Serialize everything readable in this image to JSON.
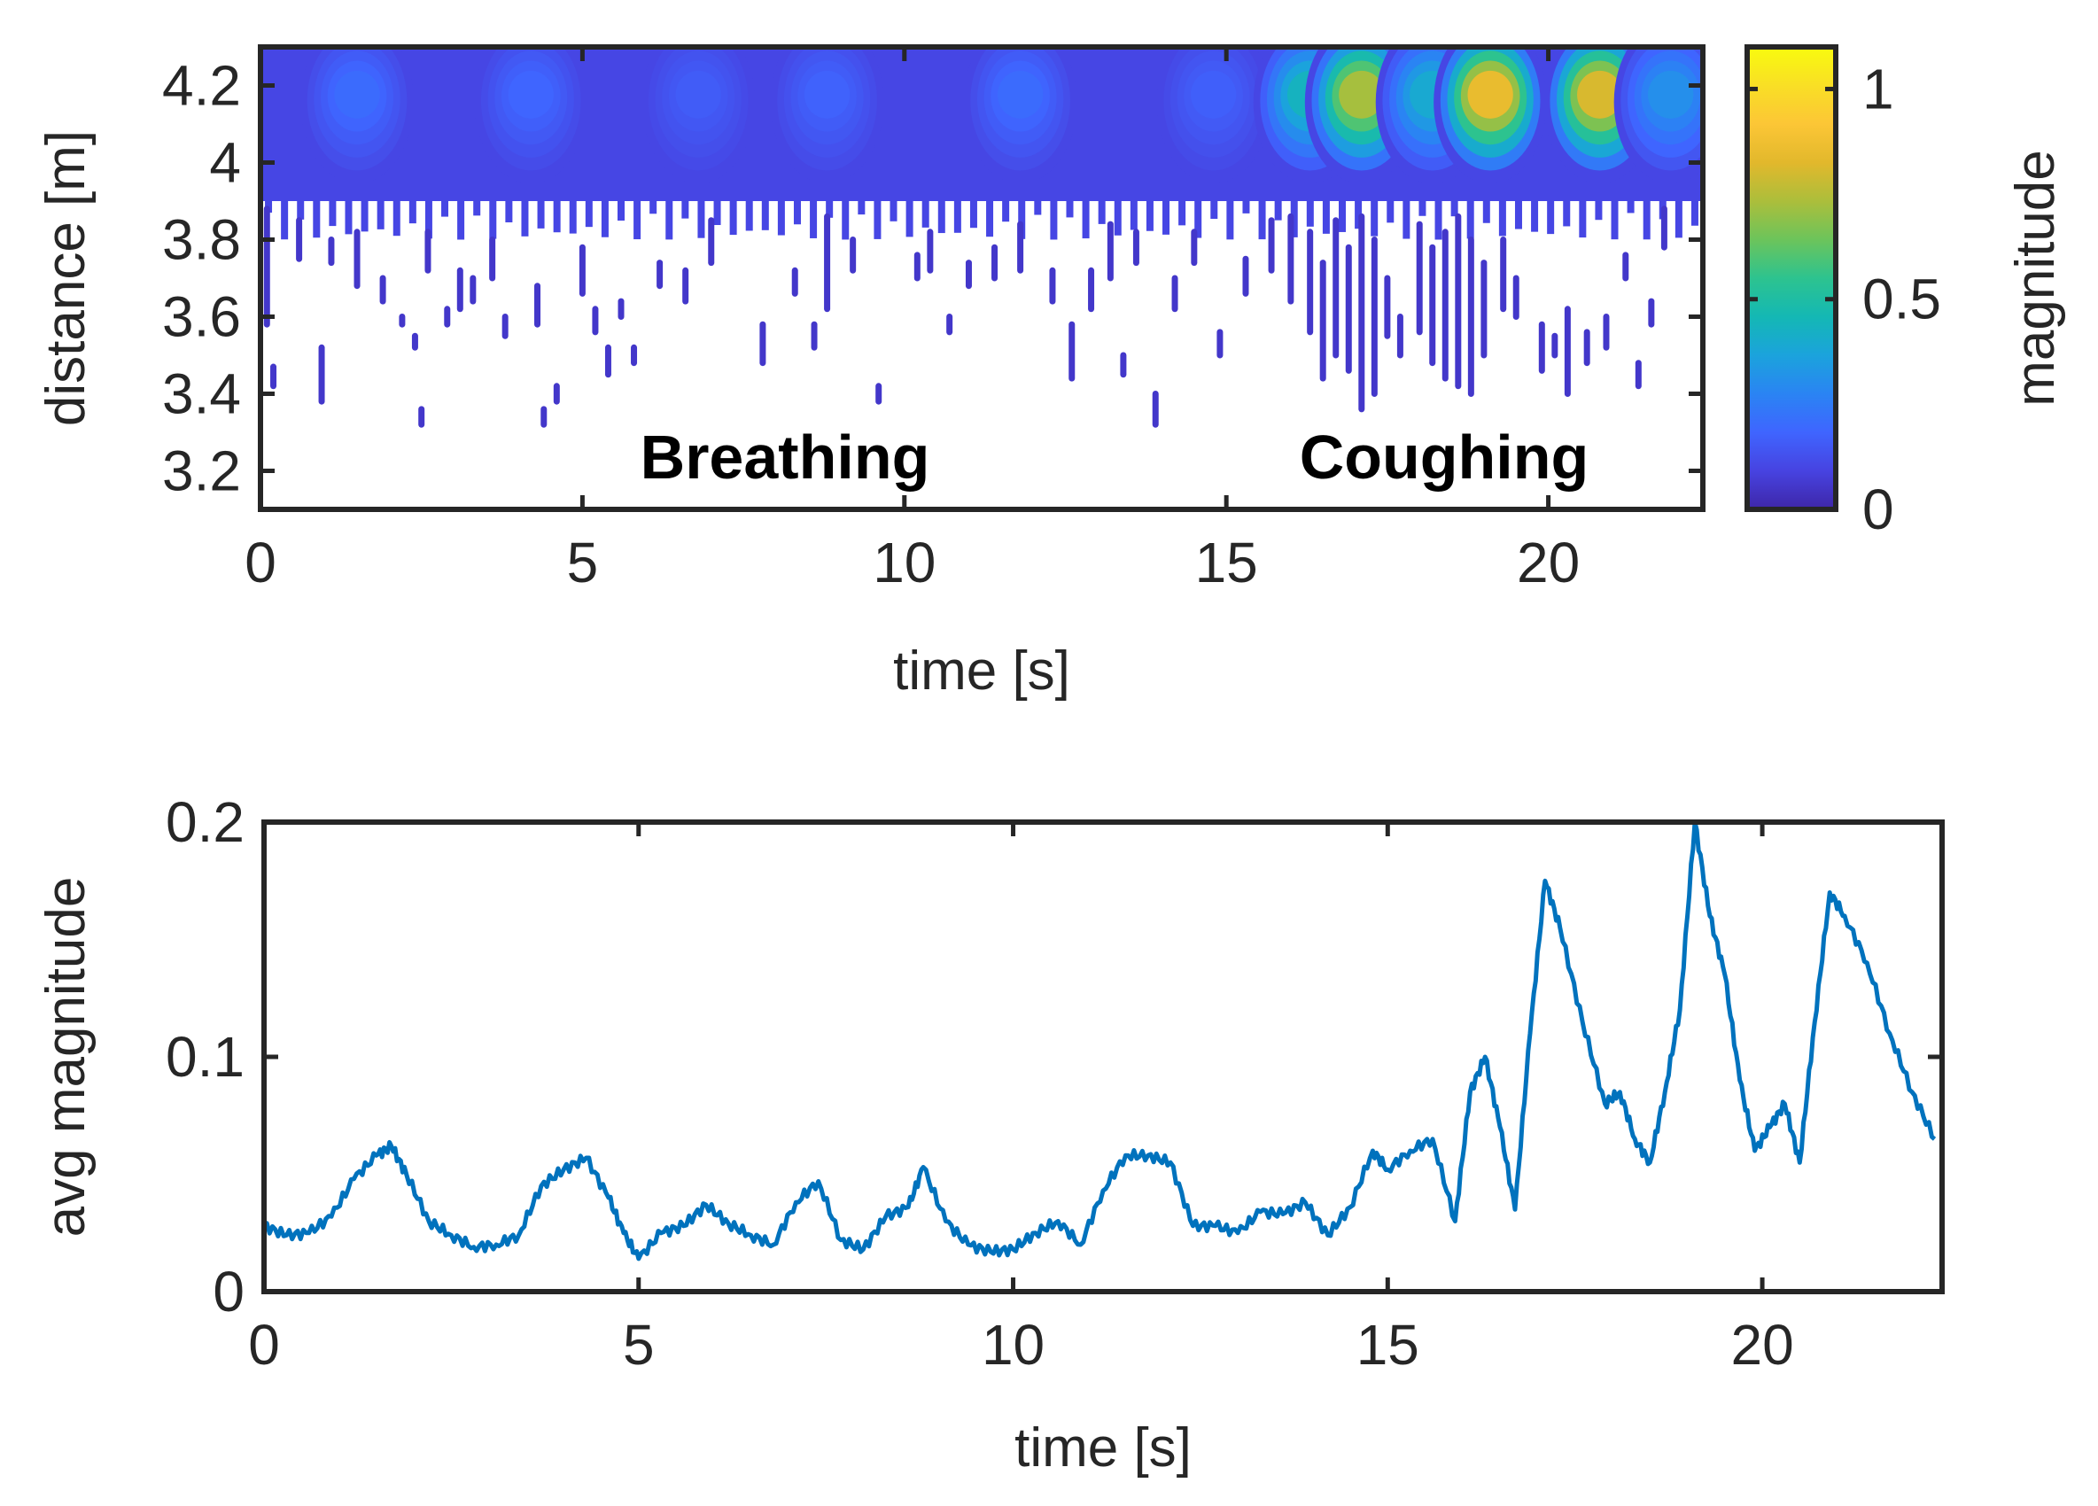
{
  "colors": {
    "line": "#0072BD",
    "axes": "#262626",
    "annotation": "#000000",
    "colormap": [
      "#3E26A8",
      "#4743E1",
      "#3F65FF",
      "#2A84F3",
      "#1BA3DC",
      "#14B8B4",
      "#2DC38F",
      "#6CC45B",
      "#ACBE3B",
      "#E2B82C",
      "#FCC636",
      "#F9DF25",
      "#F9FB0E"
    ]
  },
  "chart_data": [
    {
      "type": "heatmap",
      "id": "range-time-map",
      "xlabel": "time [s]",
      "ylabel": "distance [m]",
      "xlim": [
        0,
        22.4
      ],
      "ylim": [
        3.1,
        4.3
      ],
      "xticks": [
        0,
        5,
        10,
        15,
        20
      ],
      "xtick_labels": [
        "0",
        "5",
        "10",
        "15",
        "20"
      ],
      "yticks": [
        3.2,
        3.4,
        3.6,
        3.8,
        4.0,
        4.2
      ],
      "ytick_labels": [
        "3.2",
        "3.4",
        "3.6",
        "3.8",
        "4",
        "4.2"
      ],
      "annotations": [
        {
          "text": "Breathing",
          "x": 8.2,
          "y": 3.15
        },
        {
          "text": "Coughing",
          "x": 18.0,
          "y": 3.15
        }
      ],
      "colorbar": {
        "label": "magnitude",
        "range": [
          0,
          1.1
        ],
        "ticks": [
          0,
          0.5,
          1
        ],
        "tick_labels": [
          "0",
          "0.5",
          "1"
        ]
      },
      "near_band": {
        "y_low": 3.9,
        "y_high": 4.3,
        "base_magnitude": 0.1
      },
      "hotspots": [
        {
          "t": 1.5,
          "magnitude": 0.22
        },
        {
          "t": 4.2,
          "magnitude": 0.2
        },
        {
          "t": 6.8,
          "magnitude": 0.17
        },
        {
          "t": 8.8,
          "magnitude": 0.19
        },
        {
          "t": 11.8,
          "magnitude": 0.22
        },
        {
          "t": 14.8,
          "magnitude": 0.18
        },
        {
          "t": 16.3,
          "magnitude": 0.5
        },
        {
          "t": 17.1,
          "magnitude": 0.85
        },
        {
          "t": 18.2,
          "magnitude": 0.45
        },
        {
          "t": 19.1,
          "magnitude": 1.0
        },
        {
          "t": 20.8,
          "magnitude": 0.95
        },
        {
          "t": 21.9,
          "magnitude": 0.35
        }
      ],
      "streaks": [
        [
          0.1,
          3.88,
          3.58
        ],
        [
          0.2,
          3.47,
          3.42
        ],
        [
          0.6,
          3.85,
          3.75
        ],
        [
          0.95,
          3.52,
          3.38
        ],
        [
          1.1,
          3.8,
          3.74
        ],
        [
          1.5,
          3.82,
          3.68
        ],
        [
          1.9,
          3.7,
          3.64
        ],
        [
          2.2,
          3.6,
          3.58
        ],
        [
          2.4,
          3.55,
          3.52
        ],
        [
          2.5,
          3.36,
          3.32
        ],
        [
          2.6,
          3.82,
          3.72
        ],
        [
          2.9,
          3.62,
          3.58
        ],
        [
          3.1,
          3.72,
          3.62
        ],
        [
          3.3,
          3.7,
          3.64
        ],
        [
          3.6,
          3.8,
          3.7
        ],
        [
          3.8,
          3.6,
          3.55
        ],
        [
          4.3,
          3.68,
          3.58
        ],
        [
          4.4,
          3.36,
          3.32
        ],
        [
          4.6,
          3.42,
          3.38
        ],
        [
          5.0,
          3.78,
          3.66
        ],
        [
          5.2,
          3.62,
          3.56
        ],
        [
          5.4,
          3.52,
          3.45
        ],
        [
          5.6,
          3.64,
          3.6
        ],
        [
          5.8,
          3.52,
          3.48
        ],
        [
          6.2,
          3.74,
          3.68
        ],
        [
          6.6,
          3.72,
          3.64
        ],
        [
          7.0,
          3.85,
          3.74
        ],
        [
          7.8,
          3.58,
          3.48
        ],
        [
          8.3,
          3.72,
          3.66
        ],
        [
          8.6,
          3.58,
          3.52
        ],
        [
          8.8,
          3.86,
          3.62
        ],
        [
          9.2,
          3.8,
          3.72
        ],
        [
          9.6,
          3.42,
          3.38
        ],
        [
          10.2,
          3.76,
          3.7
        ],
        [
          10.4,
          3.82,
          3.72
        ],
        [
          10.7,
          3.6,
          3.56
        ],
        [
          11.0,
          3.74,
          3.68
        ],
        [
          11.4,
          3.78,
          3.7
        ],
        [
          11.8,
          3.84,
          3.72
        ],
        [
          12.3,
          3.72,
          3.64
        ],
        [
          12.6,
          3.58,
          3.44
        ],
        [
          12.9,
          3.72,
          3.62
        ],
        [
          13.2,
          3.84,
          3.7
        ],
        [
          13.4,
          3.5,
          3.45
        ],
        [
          13.6,
          3.82,
          3.74
        ],
        [
          13.9,
          3.4,
          3.32
        ],
        [
          14.2,
          3.7,
          3.62
        ],
        [
          14.5,
          3.82,
          3.74
        ],
        [
          14.9,
          3.56,
          3.5
        ],
        [
          15.3,
          3.75,
          3.66
        ],
        [
          15.7,
          3.85,
          3.72
        ],
        [
          16.0,
          3.86,
          3.64
        ],
        [
          16.3,
          3.82,
          3.56
        ],
        [
          16.5,
          3.74,
          3.44
        ],
        [
          16.7,
          3.85,
          3.5
        ],
        [
          16.9,
          3.78,
          3.46
        ],
        [
          17.1,
          3.86,
          3.36
        ],
        [
          17.3,
          3.8,
          3.4
        ],
        [
          17.5,
          3.7,
          3.55
        ],
        [
          17.7,
          3.6,
          3.5
        ],
        [
          18.0,
          3.84,
          3.56
        ],
        [
          18.2,
          3.78,
          3.48
        ],
        [
          18.4,
          3.82,
          3.44
        ],
        [
          18.6,
          3.86,
          3.42
        ],
        [
          18.8,
          3.8,
          3.4
        ],
        [
          19.0,
          3.74,
          3.5
        ],
        [
          19.3,
          3.8,
          3.62
        ],
        [
          19.5,
          3.7,
          3.6
        ],
        [
          19.9,
          3.58,
          3.46
        ],
        [
          20.1,
          3.55,
          3.5
        ],
        [
          20.3,
          3.62,
          3.4
        ],
        [
          20.6,
          3.56,
          3.48
        ],
        [
          20.9,
          3.6,
          3.52
        ],
        [
          21.2,
          3.76,
          3.7
        ],
        [
          21.4,
          3.48,
          3.42
        ],
        [
          21.6,
          3.64,
          3.58
        ],
        [
          21.8,
          3.88,
          3.78
        ]
      ]
    },
    {
      "type": "line",
      "id": "avg-magnitude-plot",
      "xlabel": "time [s]",
      "ylabel": "avg magnitude",
      "xlim": [
        0,
        22.4
      ],
      "ylim": [
        0,
        0.2
      ],
      "xticks": [
        0,
        5,
        10,
        15,
        20
      ],
      "xtick_labels": [
        "0",
        "5",
        "10",
        "15",
        "20"
      ],
      "yticks": [
        0,
        0.1,
        0.2
      ],
      "ytick_labels": [
        "0",
        "0.1",
        "0.2"
      ],
      "series": [
        {
          "name": "avg magnitude",
          "x": [
            0,
            0.3,
            0.6,
            0.9,
            1.2,
            1.5,
            1.7,
            1.9,
            2.2,
            2.5,
            2.8,
            3.1,
            3.4,
            3.7,
            4.0,
            4.3,
            4.6,
            4.8,
            5.0,
            5.3,
            5.6,
            5.9,
            6.2,
            6.5,
            6.8,
            7.1,
            7.4,
            7.7,
            8.0,
            8.3,
            8.6,
            8.8,
            9.1,
            9.4,
            9.7,
            10.0,
            10.3,
            10.6,
            10.9,
            11.2,
            11.5,
            11.8,
            12.1,
            12.4,
            12.7,
            13.0,
            13.3,
            13.6,
            13.9,
            14.2,
            14.5,
            14.8,
            15.0,
            15.3,
            15.6,
            15.9,
            16.1,
            16.3,
            16.5,
            16.7,
            16.9,
            17.1,
            17.3,
            17.6,
            17.9,
            18.1,
            18.3,
            18.5,
            18.7,
            18.9,
            19.1,
            19.3,
            19.5,
            19.7,
            19.9,
            20.1,
            20.3,
            20.5,
            20.7,
            20.9,
            21.1,
            21.4,
            21.7,
            22.0,
            22.3
          ],
          "y": [
            0.028,
            0.024,
            0.025,
            0.032,
            0.048,
            0.058,
            0.062,
            0.05,
            0.03,
            0.024,
            0.019,
            0.02,
            0.024,
            0.045,
            0.052,
            0.057,
            0.04,
            0.025,
            0.014,
            0.025,
            0.028,
            0.037,
            0.029,
            0.024,
            0.02,
            0.038,
            0.047,
            0.022,
            0.018,
            0.032,
            0.036,
            0.053,
            0.03,
            0.02,
            0.017,
            0.018,
            0.025,
            0.03,
            0.02,
            0.043,
            0.058,
            0.058,
            0.055,
            0.028,
            0.028,
            0.025,
            0.034,
            0.033,
            0.038,
            0.024,
            0.036,
            0.06,
            0.052,
            0.06,
            0.065,
            0.03,
            0.085,
            0.1,
            0.07,
            0.035,
            0.11,
            0.175,
            0.155,
            0.115,
            0.08,
            0.085,
            0.065,
            0.055,
            0.085,
            0.12,
            0.2,
            0.16,
            0.135,
            0.09,
            0.06,
            0.07,
            0.08,
            0.055,
            0.115,
            0.17,
            0.16,
            0.14,
            0.11,
            0.085,
            0.065
          ]
        }
      ]
    }
  ]
}
